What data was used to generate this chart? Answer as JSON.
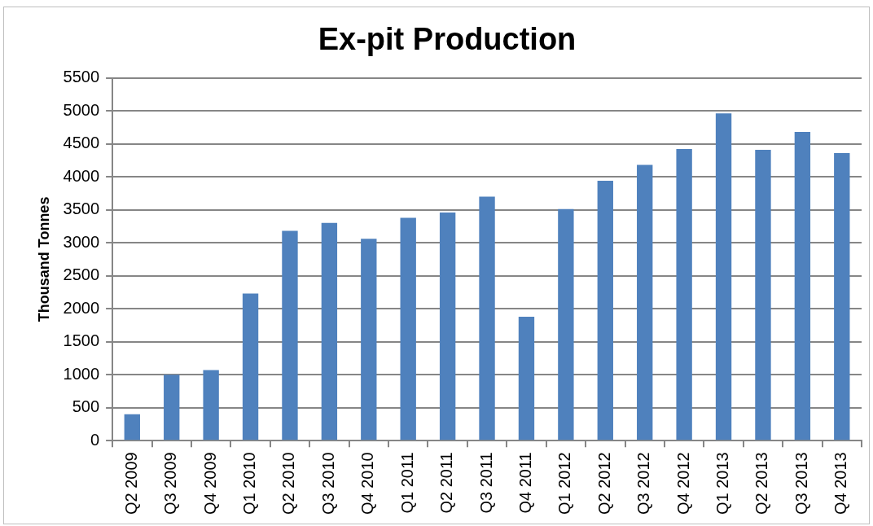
{
  "chart_data": {
    "type": "bar",
    "title": "Ex-pit Production",
    "ylabel": "Thousand Tonnes",
    "categories": [
      "Q2 2009",
      "Q3 2009",
      "Q4 2009",
      "Q1 2010",
      "Q2 2010",
      "Q3 2010",
      "Q4 2010",
      "Q1 2011",
      "Q2 2011",
      "Q3 2011",
      "Q4 2011",
      "Q1 2012",
      "Q2 2012",
      "Q3 2012",
      "Q4 2012",
      "Q1 2013",
      "Q2 2013",
      "Q3 2013",
      "Q4 2013"
    ],
    "values": [
      400,
      1000,
      1070,
      2230,
      3180,
      3300,
      3060,
      3380,
      3460,
      3700,
      1880,
      3510,
      3940,
      4180,
      4420,
      4960,
      4410,
      4680,
      4360
    ],
    "color": "#4f81bd",
    "ylim": [
      0,
      5500
    ],
    "yticks": [
      0,
      500,
      1000,
      1500,
      2000,
      2500,
      3000,
      3500,
      4000,
      4500,
      5000,
      5500
    ],
    "grid": "y",
    "legend": false
  }
}
